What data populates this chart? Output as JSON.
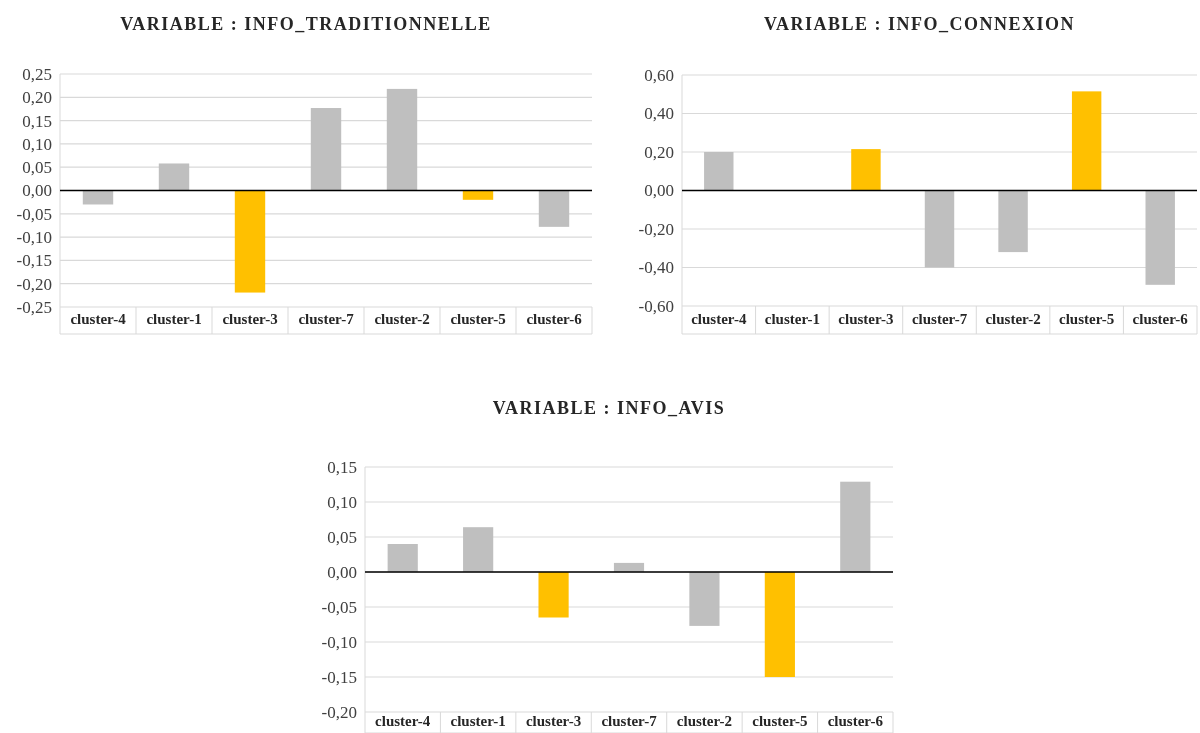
{
  "chart_data": [
    {
      "type": "bar",
      "title": "VARIABLE : INFO_TRADITIONNELLE",
      "categories": [
        "cluster-4",
        "cluster-1",
        "cluster-3",
        "cluster-7",
        "cluster-2",
        "cluster-5",
        "cluster-6"
      ],
      "values": [
        -0.03,
        0.058,
        -0.219,
        0.177,
        0.218,
        -0.02,
        -0.078
      ],
      "colors": [
        "#bfbfbf",
        "#bfbfbf",
        "#ffc000",
        "#bfbfbf",
        "#bfbfbf",
        "#ffc000",
        "#bfbfbf"
      ],
      "ylim": [
        -0.25,
        0.25
      ],
      "yticks": [
        {
          "value": -0.25,
          "label": "-0,25"
        },
        {
          "value": -0.2,
          "label": "-0,20"
        },
        {
          "value": -0.15,
          "label": "-0,15"
        },
        {
          "value": -0.1,
          "label": "-0,10"
        },
        {
          "value": -0.05,
          "label": "-0,05"
        },
        {
          "value": 0,
          "label": "0,00"
        },
        {
          "value": 0.05,
          "label": "0,05"
        },
        {
          "value": 0.1,
          "label": "0,10"
        },
        {
          "value": 0.15,
          "label": "0,15"
        },
        {
          "value": 0.2,
          "label": "0,20"
        },
        {
          "value": 0.25,
          "label": "0,25"
        }
      ],
      "grid": "y"
    },
    {
      "type": "bar",
      "title": "VARIABLE : INFO_CONNEXION",
      "categories": [
        "cluster-4",
        "cluster-1",
        "cluster-3",
        "cluster-7",
        "cluster-2",
        "cluster-5",
        "cluster-6"
      ],
      "values": [
        0.2,
        null,
        0.215,
        -0.4,
        -0.32,
        0.515,
        -0.49
      ],
      "colors": [
        "#bfbfbf",
        null,
        "#ffc000",
        "#bfbfbf",
        "#bfbfbf",
        "#ffc000",
        "#bfbfbf"
      ],
      "ylim": [
        -0.6,
        0.6
      ],
      "yticks": [
        {
          "value": -0.6,
          "label": "-0,60"
        },
        {
          "value": -0.4,
          "label": "-0,40"
        },
        {
          "value": -0.2,
          "label": "-0,20"
        },
        {
          "value": 0,
          "label": "0,00"
        },
        {
          "value": 0.2,
          "label": "0,20"
        },
        {
          "value": 0.4,
          "label": "0,40"
        },
        {
          "value": 0.6,
          "label": "0,60"
        }
      ],
      "grid": "y"
    },
    {
      "type": "bar",
      "title": "VARIABLE : INFO_AVIS",
      "categories": [
        "cluster-4",
        "cluster-1",
        "cluster-3",
        "cluster-7",
        "cluster-2",
        "cluster-5",
        "cluster-6"
      ],
      "values": [
        0.04,
        0.064,
        -0.065,
        0.013,
        -0.077,
        -0.15,
        0.129
      ],
      "colors": [
        "#bfbfbf",
        "#bfbfbf",
        "#ffc000",
        "#bfbfbf",
        "#bfbfbf",
        "#ffc000",
        "#bfbfbf"
      ],
      "ylim": [
        -0.2,
        0.15
      ],
      "yticks": [
        {
          "value": -0.2,
          "label": "-0,20"
        },
        {
          "value": -0.15,
          "label": "-0,15"
        },
        {
          "value": -0.1,
          "label": "-0,10"
        },
        {
          "value": -0.05,
          "label": "-0,05"
        },
        {
          "value": 0,
          "label": "0,00"
        },
        {
          "value": 0.05,
          "label": "0,05"
        },
        {
          "value": 0.1,
          "label": "0,10"
        },
        {
          "value": 0.15,
          "label": "0,15"
        }
      ],
      "grid": "y"
    }
  ]
}
